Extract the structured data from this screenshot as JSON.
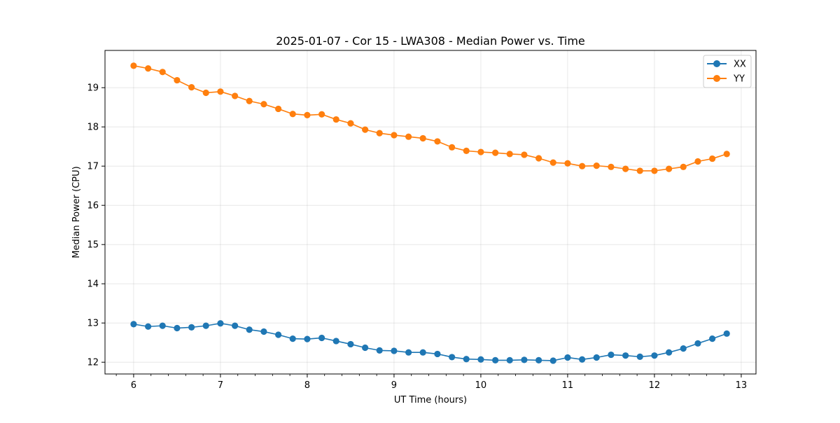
{
  "chart_data": {
    "type": "line",
    "title": "2025-01-07 - Cor 15 - LWA308 - Median Power vs. Time",
    "xlabel": "UT Time (hours)",
    "ylabel": "Median Power (CPU)",
    "xlim": [
      5.67,
      13.17
    ],
    "ylim": [
      11.7,
      19.95
    ],
    "xticks": [
      6,
      7,
      8,
      9,
      10,
      11,
      12,
      13
    ],
    "xtick_labels": [
      "6",
      "7",
      "8",
      "9",
      "10",
      "11",
      "12",
      "13"
    ],
    "yticks": [
      12,
      13,
      14,
      15,
      16,
      17,
      18,
      19
    ],
    "ytick_labels": [
      "12",
      "13",
      "14",
      "15",
      "16",
      "17",
      "18",
      "19"
    ],
    "grid": true,
    "legend_position": "top-right",
    "x": [
      6.0,
      6.167,
      6.333,
      6.5,
      6.667,
      6.833,
      7.0,
      7.167,
      7.333,
      7.5,
      7.667,
      7.833,
      8.0,
      8.167,
      8.333,
      8.5,
      8.667,
      8.833,
      9.0,
      9.167,
      9.333,
      9.5,
      9.667,
      9.833,
      10.0,
      10.167,
      10.333,
      10.5,
      10.667,
      10.833,
      11.0,
      11.167,
      11.333,
      11.5,
      11.667,
      11.833,
      12.0,
      12.167,
      12.333,
      12.5,
      12.667,
      12.833
    ],
    "series": [
      {
        "name": "XX",
        "color": "#1f77b4",
        "values": [
          12.97,
          12.91,
          12.93,
          12.87,
          12.89,
          12.93,
          12.99,
          12.93,
          12.83,
          12.78,
          12.7,
          12.6,
          12.59,
          12.62,
          12.54,
          12.46,
          12.37,
          12.3,
          12.29,
          12.25,
          12.25,
          12.21,
          12.13,
          12.08,
          12.07,
          12.05,
          12.05,
          12.06,
          12.05,
          12.04,
          12.12,
          12.07,
          12.12,
          12.19,
          12.17,
          12.14,
          12.17,
          12.25,
          12.35,
          12.48,
          12.6,
          12.73
        ]
      },
      {
        "name": "YY",
        "color": "#ff7f0e",
        "values": [
          19.56,
          19.49,
          19.4,
          19.19,
          19.01,
          18.87,
          18.9,
          18.79,
          18.66,
          18.58,
          18.46,
          18.33,
          18.3,
          18.32,
          18.19,
          18.09,
          17.93,
          17.84,
          17.79,
          17.75,
          17.71,
          17.63,
          17.48,
          17.39,
          17.36,
          17.34,
          17.31,
          17.29,
          17.2,
          17.09,
          17.07,
          17.0,
          17.01,
          16.98,
          16.93,
          16.88,
          16.88,
          16.93,
          16.98,
          17.12,
          17.19,
          17.31
        ]
      }
    ]
  }
}
